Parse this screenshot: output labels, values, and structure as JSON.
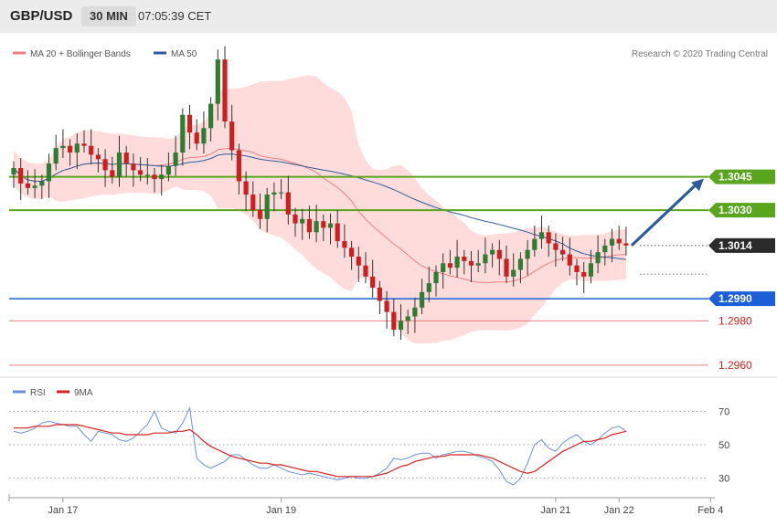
{
  "header": {
    "pair": "GBP/USD",
    "timeframe": "30 MIN",
    "time": "07:05:39 CET"
  },
  "colors": {
    "ma20": "#f08080",
    "ma50": "#2e5b9a",
    "band_fill": "#ffd6d6",
    "up_body": "#2e7d32",
    "down_body": "#cc1f1f",
    "resistance": "#5aa51e",
    "support_blue": "#1a5fd8",
    "support_red": "#e88080",
    "rsi": "#6a8fd8",
    "rsi_ma": "#d62020",
    "arrow": "#2e5b9a"
  },
  "chart_data": [
    {
      "type": "candlestick",
      "legend": [
        {
          "label": "MA 20 + Bollinger Bands",
          "color": "#f08080"
        },
        {
          "label": "MA 50",
          "color": "#2e5b9a"
        }
      ],
      "credit": "Research © 2020 Trading Central",
      "ylim": [
        1.2955,
        1.311
      ],
      "x_labels": [
        {
          "label": "Jan 17",
          "x": 7
        },
        {
          "label": "Jan 19",
          "x": 38
        },
        {
          "label": "Jan 21",
          "x": 77
        },
        {
          "label": "Jan 22",
          "x": 86
        },
        {
          "label": "Feb 4",
          "x": 99
        }
      ],
      "levels": [
        {
          "value": 1.3045,
          "label": "1.3045",
          "style": "resistance"
        },
        {
          "value": 1.303,
          "label": "1.3030",
          "style": "resistance"
        },
        {
          "value": 1.3014,
          "label": "1.3014",
          "style": "last"
        },
        {
          "value": 1.299,
          "label": "1.2990",
          "style": "support_blue"
        },
        {
          "value": 1.298,
          "label": "1.2980",
          "style": "support_red"
        },
        {
          "value": 1.296,
          "label": "1.2960",
          "style": "support_red"
        }
      ],
      "last_price": 1.3014,
      "projection": {
        "from_index": 87,
        "from_price": 1.3014,
        "to_price": 1.3045
      },
      "close": [
        1.3049,
        1.3042,
        1.304,
        1.3041,
        1.3043,
        1.3051,
        1.3058,
        1.3059,
        1.3056,
        1.306,
        1.3059,
        1.3055,
        1.3053,
        1.3048,
        1.3045,
        1.3056,
        1.3051,
        1.3048,
        1.3046,
        1.3046,
        1.3044,
        1.3046,
        1.305,
        1.3056,
        1.3073,
        1.3065,
        1.306,
        1.3067,
        1.3078,
        1.3098,
        1.307,
        1.3057,
        1.3043,
        1.3037,
        1.303,
        1.3026,
        1.3037,
        1.3038,
        1.3038,
        1.3028,
        1.3024,
        1.3026,
        1.302,
        1.3025,
        1.3022,
        1.3024,
        1.3016,
        1.3013,
        1.3009,
        1.3005,
        1.3,
        1.2995,
        1.2989,
        1.2984,
        1.2976,
        1.298,
        1.2982,
        1.2986,
        1.2993,
        1.2997,
        1.3002,
        1.3006,
        1.3004,
        1.3009,
        1.3007,
        1.3005,
        1.3006,
        1.301,
        1.3012,
        1.3008,
        1.3,
        1.3003,
        1.3008,
        1.3012,
        1.3017,
        1.302,
        1.3015,
        1.3012,
        1.301,
        1.3005,
        1.3002,
        1.3,
        1.3006,
        1.3011,
        1.3014,
        1.3017,
        1.3015,
        1.3014
      ],
      "rsi": {
        "legend": [
          {
            "label": "RSI",
            "color": "#6a8fd8"
          },
          {
            "label": "9MA",
            "color": "#d62020"
          }
        ],
        "ylim": [
          20,
          80
        ],
        "ticks": [
          30,
          50,
          70
        ],
        "rsi_values": [
          58,
          57,
          58,
          60,
          63,
          64,
          63,
          62,
          61,
          61,
          56,
          52,
          58,
          57,
          56,
          53,
          52,
          54,
          58,
          62,
          70,
          60,
          58,
          57,
          63,
          72,
          42,
          38,
          36,
          38,
          40,
          44,
          44,
          41,
          38,
          36,
          36,
          38,
          36,
          34,
          33,
          32,
          33,
          32,
          31,
          30,
          29,
          30,
          31,
          30,
          30,
          31,
          33,
          36,
          42,
          41,
          42,
          44,
          45,
          45,
          42,
          44,
          45,
          46,
          46,
          45,
          43,
          42,
          40,
          35,
          28,
          26,
          30,
          39,
          50,
          53,
          48,
          46,
          51,
          54,
          56,
          52,
          50,
          53,
          57,
          60,
          61,
          58
        ],
        "ma_values": [
          60,
          60,
          60,
          61,
          61,
          61,
          62,
          62,
          62,
          62,
          61,
          60,
          59,
          58,
          57,
          57,
          56,
          56,
          56,
          56,
          57,
          57,
          57,
          58,
          58,
          59,
          56,
          52,
          49,
          47,
          45,
          43,
          42,
          41,
          40,
          39,
          39,
          38,
          38,
          37,
          36,
          35,
          34,
          34,
          33,
          32,
          31,
          31,
          31,
          31,
          31,
          31,
          32,
          33,
          35,
          37,
          38,
          40,
          41,
          42,
          43,
          43,
          44,
          44,
          44,
          44,
          44,
          43,
          42,
          40,
          38,
          36,
          34,
          33,
          34,
          37,
          40,
          43,
          46,
          48,
          50,
          52,
          52,
          53,
          54,
          56,
          57,
          58
        ]
      }
    }
  ]
}
